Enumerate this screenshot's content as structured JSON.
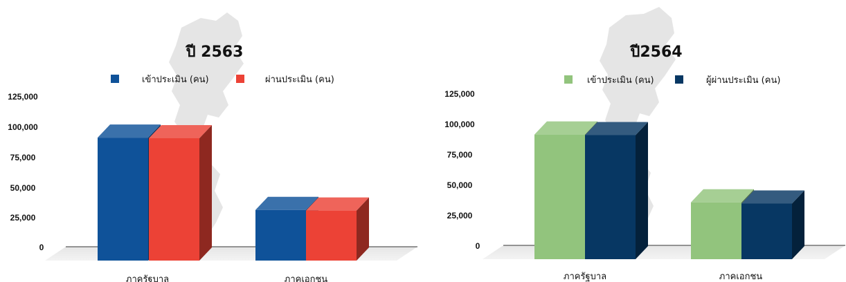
{
  "chart_data": [
    {
      "type": "bar",
      "title": "ปี 2563",
      "categories": [
        "ภาครัฐบาล",
        "ภาคเอกชน"
      ],
      "series": [
        {
          "name": "เข้าประเมิน (คน)",
          "values": [
            102000,
            42000
          ]
        },
        {
          "name": "ผ่านประเมิน (คน)",
          "values": [
            101500,
            41500
          ]
        }
      ],
      "ylim": [
        0,
        125000
      ],
      "yticks": [
        "125,000",
        "100,000",
        "75,000",
        "50,000",
        "25,000",
        "0"
      ],
      "legend": "top",
      "grid": false,
      "colors": [
        "#0f5299",
        "#ec4236"
      ]
    },
    {
      "type": "bar",
      "title": "ปี2564",
      "categories": [
        "ภาครัฐบาล",
        "ภาคเอกชน"
      ],
      "series": [
        {
          "name": "เข้าประเมิน (คน)",
          "values": [
            102000,
            46500
          ]
        },
        {
          "name": "ผู้ผ่านประเมิน (คน)",
          "values": [
            101500,
            45500
          ]
        }
      ],
      "ylim": [
        0,
        125000
      ],
      "yticks": [
        "125,000",
        "100,000",
        "75,000",
        "50,000",
        "25,000",
        "0"
      ],
      "legend": "top",
      "grid": false,
      "colors": [
        "#92c47d",
        "#073763"
      ]
    }
  ]
}
